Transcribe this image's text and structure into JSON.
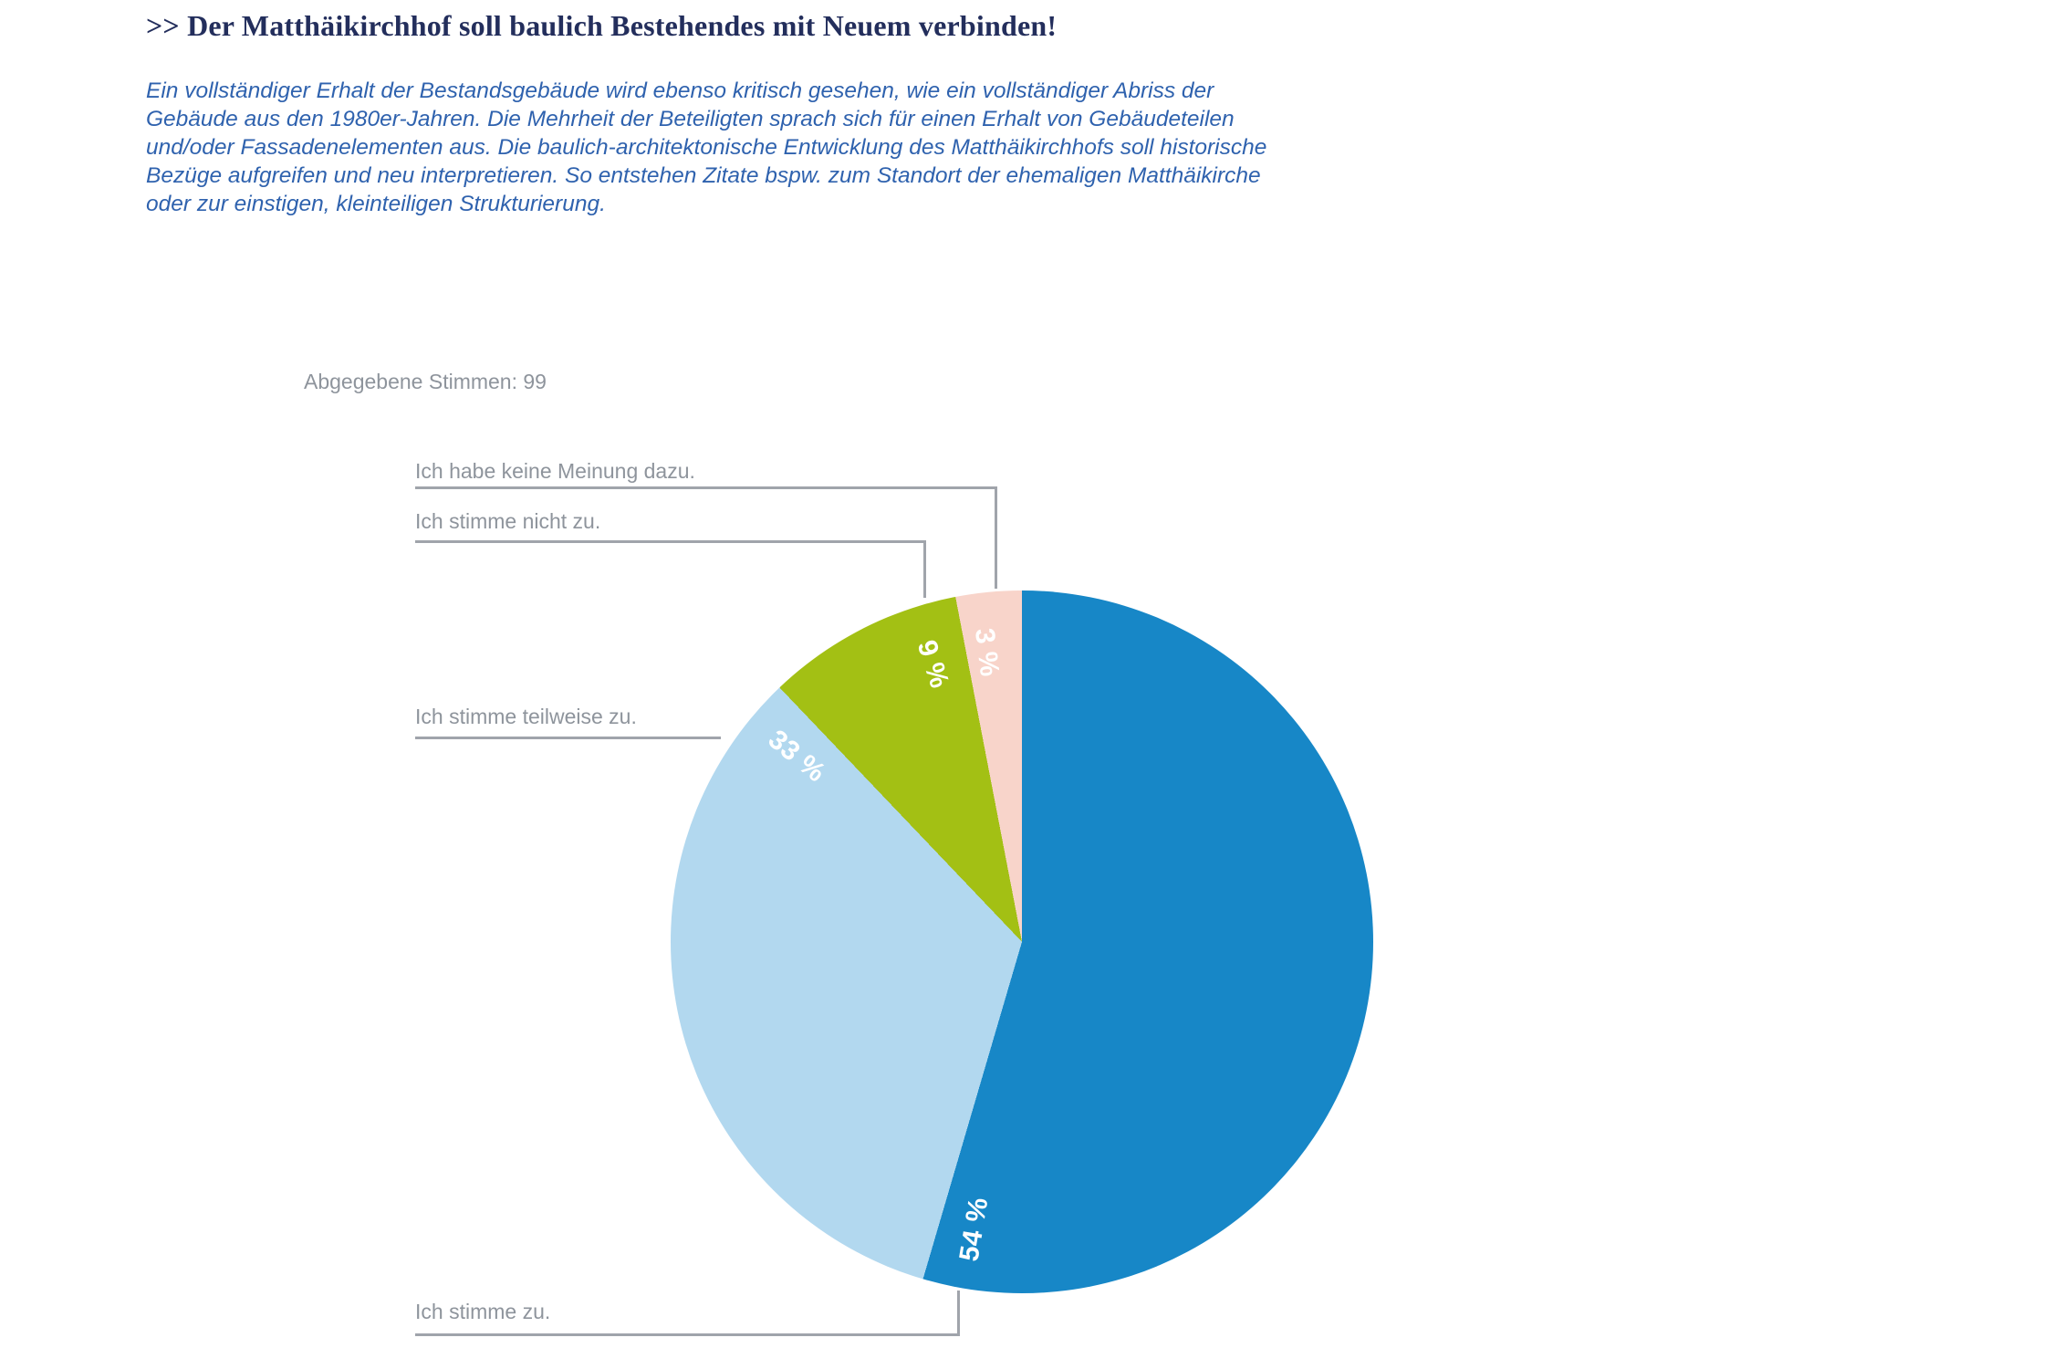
{
  "header": {
    "title": ">> Der Matthäikirchhof soll baulich Bestehendes mit Neuem verbinden!"
  },
  "intro": {
    "text": "Ein vollständiger Erhalt der Bestandsgebäude wird ebenso kritisch gesehen, wie ein vollständiger Abriss der Gebäude aus den 1980er-Jahren. Die Mehrheit der Beteiligten sprach sich für einen Erhalt von Gebäudeteilen und/oder Fassadenelementen aus. Die baulich-architektonische Entwicklung des Matthäikirchhofs soll historische Bezüge aufgreifen und neu interpretieren. So entstehen Zitate bspw. zum Standort der ehemaligen Matthäikirche oder zur einstigen, kleinteiligen Strukturierung."
  },
  "chart_data": {
    "type": "pie",
    "annotation": "Abgegebene Stimmen: 99",
    "total_votes": 99,
    "labels": [
      "Ich stimme zu.",
      "Ich stimme teilweise zu.",
      "Ich stimme nicht zu.",
      "Ich habe keine Meinung dazu."
    ],
    "values": [
      54,
      33,
      9,
      3
    ],
    "unit": "%",
    "value_labels": [
      "54 %",
      "33 %",
      "9 %",
      "3 %"
    ],
    "colors": [
      "#1787c7",
      "#b2d8ef",
      "#a3c014",
      "#f8d4ca"
    ],
    "start_angle_deg": 0,
    "direction": "clockwise",
    "legend_position": "callouts-left"
  },
  "theme": {
    "heading-color": "#232e5c",
    "paragraph-color": "#2f62ae",
    "muted-text-color": "#8e949c",
    "callout-line-color": "#a0a4ab",
    "background": "#ffffff"
  }
}
